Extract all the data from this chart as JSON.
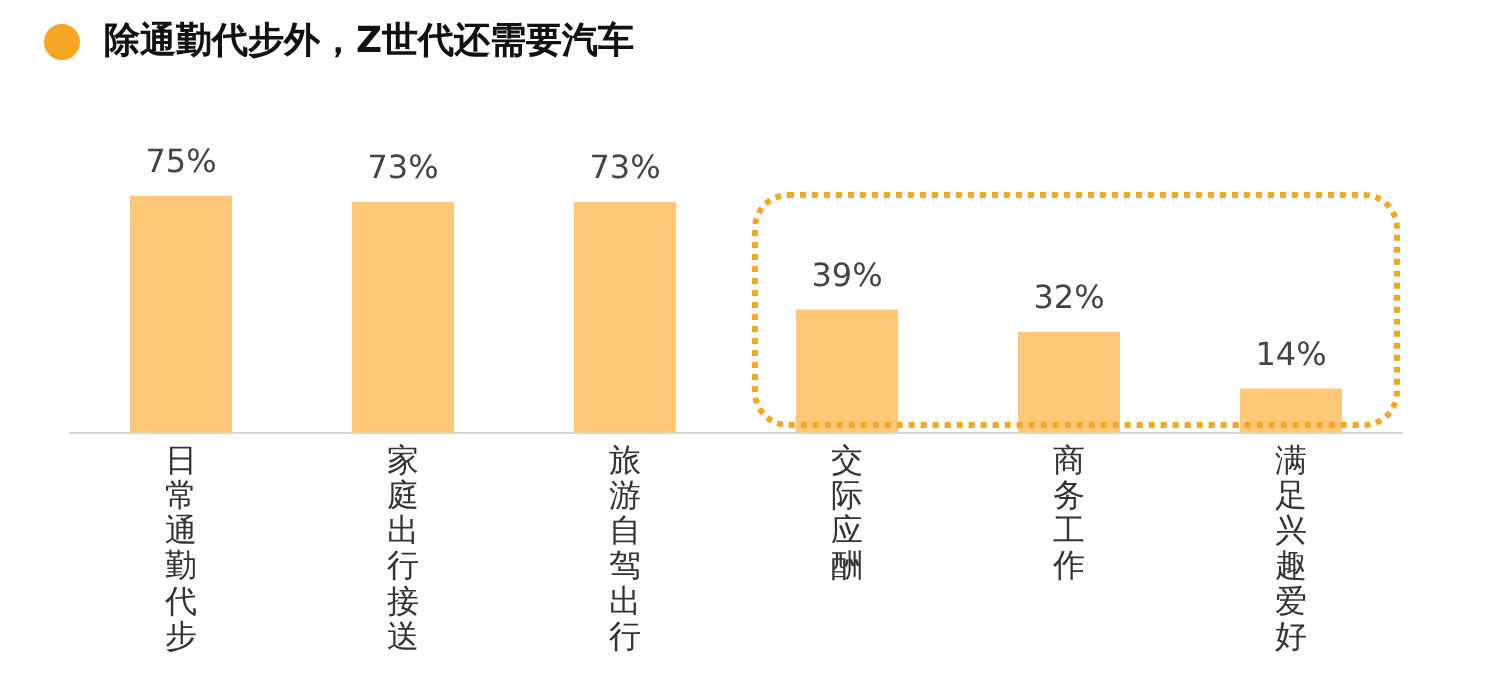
{
  "chart_data": {
    "type": "bar",
    "title": "除通勤代步外，Z世代还需要汽车",
    "categories": [
      "日常通勤代步",
      "家庭出行接送",
      "旅游自驾出行",
      "交际应酬",
      "商务工作",
      "满足兴趣爱好"
    ],
    "values": [
      75,
      73,
      73,
      39,
      32,
      14
    ],
    "value_labels": [
      "75%",
      "73%",
      "73%",
      "39%",
      "32%",
      "14%"
    ],
    "color": "#ffc878",
    "tick_labels": "x",
    "grid": false,
    "legend": false
  }
}
